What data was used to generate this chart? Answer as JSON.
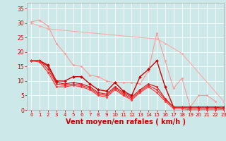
{
  "background_color": "#cce8e8",
  "grid_color": "#ffffff",
  "xlabel": "Vent moyen/en rafales ( km/h )",
  "xlabel_color": "#cc0000",
  "xlabel_fontsize": 7,
  "tick_color": "#cc0000",
  "xlim": [
    -0.5,
    23
  ],
  "ylim": [
    0,
    37
  ],
  "yticks": [
    0,
    5,
    10,
    15,
    20,
    25,
    30,
    35
  ],
  "xticks": [
    0,
    1,
    2,
    3,
    4,
    5,
    6,
    7,
    8,
    9,
    10,
    11,
    12,
    13,
    14,
    15,
    16,
    17,
    18,
    19,
    20,
    21,
    22,
    23
  ],
  "lines": [
    {
      "x": [
        0,
        1,
        2,
        3,
        4,
        5,
        6,
        7,
        8,
        9,
        10,
        11,
        12,
        13,
        14,
        15,
        16,
        17,
        18,
        19,
        20,
        21,
        22
      ],
      "y": [
        30.5,
        31,
        29,
        23,
        19.5,
        15.5,
        15,
        12,
        11.5,
        10,
        9.5,
        9.5,
        9.5,
        9,
        13.5,
        26.5,
        17,
        7.5,
        11,
        1,
        5,
        5,
        3
      ],
      "color": "#ff9999",
      "lw": 0.8,
      "marker": "D",
      "ms": 1.5
    },
    {
      "x": [
        0,
        1,
        2,
        15,
        16,
        18,
        23
      ],
      "y": [
        30,
        29,
        28,
        24.5,
        23,
        19.5,
        3
      ],
      "color": "#ffaaaa",
      "lw": 0.8,
      "marker": "D",
      "ms": 1.5
    },
    {
      "x": [
        0,
        1,
        2,
        3,
        4,
        5,
        6,
        7,
        8,
        9,
        10,
        11,
        12,
        13,
        14,
        15,
        16,
        17,
        18,
        19,
        20,
        21,
        22,
        23
      ],
      "y": [
        17,
        17,
        15.5,
        10,
        10,
        11.5,
        11.5,
        9,
        7,
        6.5,
        9.5,
        6.5,
        5,
        11.5,
        14,
        17,
        8,
        1,
        1,
        1,
        1,
        1,
        1,
        1
      ],
      "color": "#cc0000",
      "lw": 1.0,
      "marker": "D",
      "ms": 2.0
    },
    {
      "x": [
        0,
        1,
        2,
        3,
        4,
        5,
        6,
        7,
        8,
        9,
        10,
        11,
        12,
        13,
        14,
        15,
        16,
        17,
        18,
        19,
        20,
        21,
        22,
        23
      ],
      "y": [
        17,
        17,
        15,
        9.5,
        9,
        9.5,
        9,
        8,
        6,
        5.5,
        8,
        6,
        4.5,
        7,
        9,
        8,
        4,
        1,
        1,
        1,
        1,
        1,
        1,
        0.5
      ],
      "color": "#dd1111",
      "lw": 0.8,
      "marker": "D",
      "ms": 1.5
    },
    {
      "x": [
        0,
        1,
        2,
        3,
        4,
        5,
        6,
        7,
        8,
        9,
        10,
        11,
        12,
        13,
        14,
        15,
        16,
        17,
        18,
        19,
        20,
        21,
        22,
        23
      ],
      "y": [
        17,
        17,
        14,
        9,
        8.5,
        9,
        8.5,
        7.5,
        5.5,
        5,
        7.5,
        5.5,
        4,
        6.5,
        8.5,
        7,
        3.5,
        1,
        1,
        0.5,
        0.5,
        0.5,
        0.5,
        0.5
      ],
      "color": "#ee2222",
      "lw": 0.8,
      "marker": "D",
      "ms": 1.5
    },
    {
      "x": [
        0,
        1,
        2,
        3,
        4,
        5,
        6,
        7,
        8,
        9,
        10,
        11,
        12,
        13,
        14,
        15,
        16,
        17,
        18,
        19,
        20,
        21,
        22,
        23
      ],
      "y": [
        17,
        16.5,
        13,
        8,
        8,
        8.5,
        8,
        7,
        5,
        4.5,
        7,
        5,
        3.5,
        6,
        8,
        6,
        3,
        0.5,
        0.5,
        0,
        0,
        0,
        0,
        0
      ],
      "color": "#ff3333",
      "lw": 0.8,
      "marker": "D",
      "ms": 1.5
    }
  ]
}
